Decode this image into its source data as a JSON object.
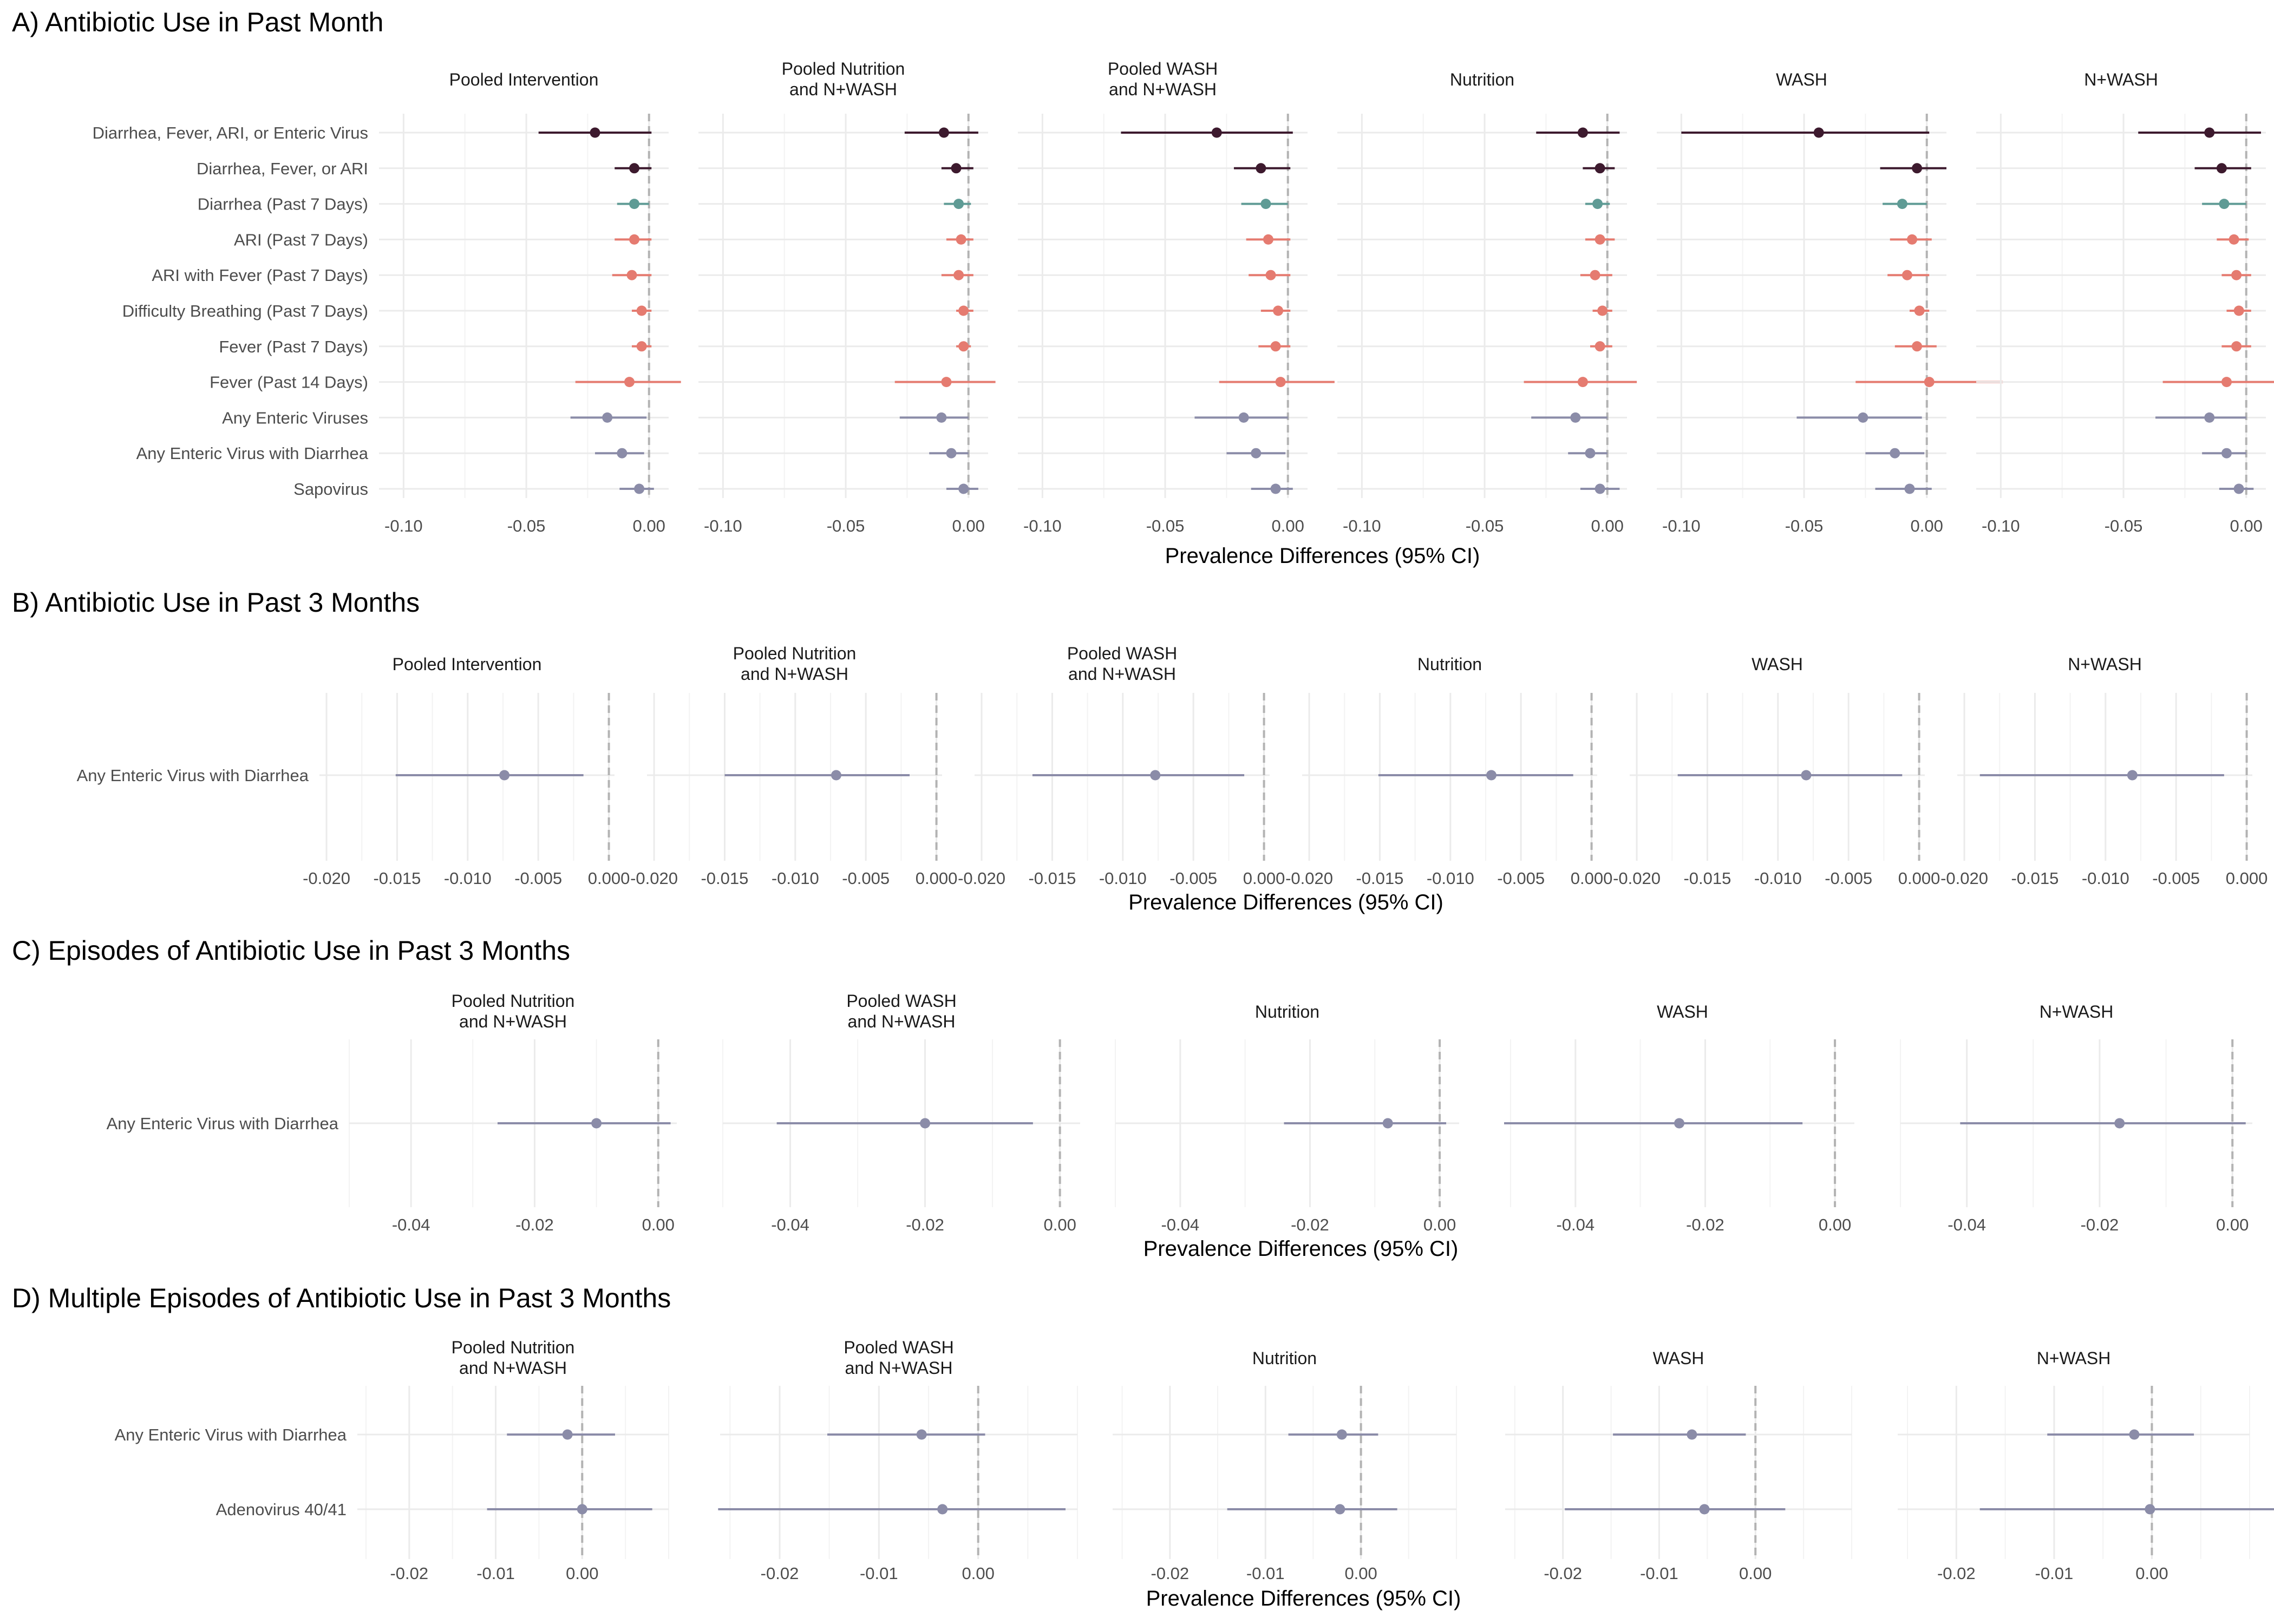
{
  "colors": {
    "severe": "#3d1a2e",
    "diarrhea": "#5f9b95",
    "respiratory_fever": "#e57b70",
    "enteric": "#8b8ca8"
  },
  "chart_data": [
    {
      "type": "scatter",
      "variant": "forest-plot",
      "panel_title": "A) Antibiotic Use in Past Month",
      "xlabel": "Prevalence Differences (95% CI)",
      "xlim": [
        -0.11,
        0.008
      ],
      "xticks": [
        -0.1,
        -0.05,
        0.0
      ],
      "xtick_labels": [
        "-0.10",
        "-0.05",
        "0.00"
      ],
      "reference_line": 0,
      "grid": true,
      "outcomes": [
        {
          "label": "Diarrhea, Fever, ARI, or Enteric Virus",
          "color_key": "severe"
        },
        {
          "label": "Diarrhea, Fever, or ARI",
          "color_key": "severe"
        },
        {
          "label": "Diarrhea (Past 7 Days)",
          "color_key": "diarrhea"
        },
        {
          "label": "ARI (Past 7 Days)",
          "color_key": "respiratory_fever"
        },
        {
          "label": "ARI with Fever (Past 7 Days)",
          "color_key": "respiratory_fever"
        },
        {
          "label": "Difficulty Breathing (Past 7 Days)",
          "color_key": "respiratory_fever"
        },
        {
          "label": "Fever (Past 7 Days)",
          "color_key": "respiratory_fever"
        },
        {
          "label": "Fever (Past 14 Days)",
          "color_key": "respiratory_fever"
        },
        {
          "label": "Any Enteric Viruses",
          "color_key": "enteric"
        },
        {
          "label": "Any Enteric Virus with Diarrhea",
          "color_key": "enteric"
        },
        {
          "label": "Sapovirus",
          "color_key": "enteric"
        }
      ],
      "facets": [
        {
          "title": "Pooled Intervention",
          "est": [
            -0.022,
            -0.006,
            -0.006,
            -0.006,
            -0.007,
            -0.003,
            -0.003,
            -0.008,
            -0.017,
            -0.011,
            -0.004
          ],
          "lo": [
            -0.045,
            -0.014,
            -0.013,
            -0.014,
            -0.015,
            -0.007,
            -0.007,
            -0.03,
            -0.032,
            -0.022,
            -0.012
          ],
          "hi": [
            0.001,
            0.001,
            0.0,
            0.001,
            0.001,
            0.001,
            0.001,
            0.013,
            -0.001,
            -0.002,
            0.002
          ]
        },
        {
          "title": "Pooled Nutrition\nand N+WASH",
          "est": [
            -0.01,
            -0.005,
            -0.004,
            -0.003,
            -0.004,
            -0.002,
            -0.002,
            -0.009,
            -0.011,
            -0.007,
            -0.002
          ],
          "lo": [
            -0.026,
            -0.011,
            -0.01,
            -0.009,
            -0.011,
            -0.005,
            -0.005,
            -0.03,
            -0.028,
            -0.016,
            -0.009
          ],
          "hi": [
            0.004,
            0.002,
            0.001,
            0.002,
            0.002,
            0.002,
            0.001,
            0.011,
            0.0,
            0.0,
            0.004
          ]
        },
        {
          "title": "Pooled WASH\nand N+WASH",
          "est": [
            -0.029,
            -0.011,
            -0.009,
            -0.008,
            -0.007,
            -0.004,
            -0.005,
            -0.003,
            -0.018,
            -0.013,
            -0.005
          ],
          "lo": [
            -0.068,
            -0.022,
            -0.019,
            -0.017,
            -0.016,
            -0.011,
            -0.012,
            -0.028,
            -0.038,
            -0.025,
            -0.015
          ],
          "hi": [
            0.002,
            0.001,
            0.0,
            0.001,
            0.001,
            0.001,
            0.001,
            0.019,
            0.0,
            -0.001,
            0.002
          ]
        },
        {
          "title": "Nutrition",
          "est": [
            -0.01,
            -0.003,
            -0.004,
            -0.003,
            -0.005,
            -0.002,
            -0.003,
            -0.01,
            -0.013,
            -0.007,
            -0.003
          ],
          "lo": [
            -0.029,
            -0.01,
            -0.009,
            -0.009,
            -0.011,
            -0.006,
            -0.007,
            -0.034,
            -0.031,
            -0.016,
            -0.011
          ],
          "hi": [
            0.005,
            0.003,
            0.001,
            0.003,
            0.002,
            0.002,
            0.002,
            0.012,
            0.0,
            0.0,
            0.005
          ]
        },
        {
          "title": "WASH",
          "est": [
            -0.044,
            -0.004,
            -0.01,
            -0.006,
            -0.008,
            -0.003,
            -0.004,
            0.001,
            -0.026,
            -0.013,
            -0.007
          ],
          "lo": [
            -0.1,
            -0.019,
            -0.018,
            -0.015,
            -0.016,
            -0.007,
            -0.013,
            -0.029,
            -0.053,
            -0.025,
            -0.021
          ],
          "hi": [
            0.001,
            0.008,
            0.0,
            0.002,
            0.001,
            0.001,
            0.004,
            0.031,
            -0.002,
            -0.001,
            0.002
          ]
        },
        {
          "title": "N+WASH",
          "est": [
            -0.015,
            -0.01,
            -0.009,
            -0.005,
            -0.004,
            -0.003,
            -0.004,
            -0.008,
            -0.015,
            -0.008,
            -0.003
          ],
          "lo": [
            -0.044,
            -0.021,
            -0.018,
            -0.012,
            -0.01,
            -0.008,
            -0.01,
            -0.034,
            -0.037,
            -0.018,
            -0.011
          ],
          "hi": [
            0.006,
            0.002,
            0.0,
            0.001,
            0.002,
            0.002,
            0.002,
            0.016,
            0.0,
            0.0,
            0.003
          ]
        }
      ]
    },
    {
      "type": "scatter",
      "variant": "forest-plot",
      "panel_title": "B) Antibiotic Use in Past 3 Months",
      "xlabel": "Prevalence Differences (95% CI)",
      "xlim": [
        -0.0205,
        0.0004
      ],
      "xticks": [
        -0.02,
        -0.015,
        -0.01,
        -0.005,
        0.0
      ],
      "xtick_labels": [
        "-0.020",
        "-0.015",
        "-0.010",
        "-0.005",
        "0.000"
      ],
      "reference_line": 0,
      "grid": true,
      "outcomes": [
        {
          "label": "Any Enteric Virus with Diarrhea",
          "color_key": "enteric"
        }
      ],
      "facets": [
        {
          "title": "Pooled Intervention",
          "est": [
            -0.0074
          ],
          "lo": [
            -0.0151
          ],
          "hi": [
            -0.0018
          ]
        },
        {
          "title": "Pooled Nutrition\nand N+WASH",
          "est": [
            -0.0071
          ],
          "lo": [
            -0.015
          ],
          "hi": [
            -0.0019
          ]
        },
        {
          "title": "Pooled WASH\nand N+WASH",
          "est": [
            -0.0077
          ],
          "lo": [
            -0.0164
          ],
          "hi": [
            -0.0014
          ]
        },
        {
          "title": "Nutrition",
          "est": [
            -0.0071
          ],
          "lo": [
            -0.0151
          ],
          "hi": [
            -0.0013
          ]
        },
        {
          "title": "WASH",
          "est": [
            -0.008
          ],
          "lo": [
            -0.0171
          ],
          "hi": [
            -0.0012
          ]
        },
        {
          "title": "N+WASH",
          "est": [
            -0.0081
          ],
          "lo": [
            -0.0189
          ],
          "hi": [
            -0.0016
          ]
        }
      ]
    },
    {
      "type": "scatter",
      "variant": "forest-plot",
      "panel_title": "C) Episodes of Antibiotic Use in Past 3 Months",
      "xlabel": "Prevalence Differences (95% CI)",
      "xlim": [
        -0.05,
        0.003
      ],
      "xticks": [
        -0.04,
        -0.02,
        0.0
      ],
      "xtick_labels": [
        "-0.04",
        "-0.02",
        "0.00"
      ],
      "reference_line": 0,
      "grid": true,
      "outcomes": [
        {
          "label": "Any Enteric Virus with Diarrhea",
          "color_key": "enteric"
        }
      ],
      "facets": [
        {
          "title": "Pooled Nutrition\nand N+WASH",
          "est": [
            -0.01
          ],
          "lo": [
            -0.026
          ],
          "hi": [
            0.002
          ]
        },
        {
          "title": "Pooled WASH\nand N+WASH",
          "est": [
            -0.02
          ],
          "lo": [
            -0.042
          ],
          "hi": [
            -0.004
          ]
        },
        {
          "title": "Nutrition",
          "est": [
            -0.008
          ],
          "lo": [
            -0.024
          ],
          "hi": [
            0.001
          ]
        },
        {
          "title": "WASH",
          "est": [
            -0.024
          ],
          "lo": [
            -0.051
          ],
          "hi": [
            -0.005
          ]
        },
        {
          "title": "N+WASH",
          "est": [
            -0.017
          ],
          "lo": [
            -0.041
          ],
          "hi": [
            0.002
          ]
        }
      ]
    },
    {
      "type": "scatter",
      "variant": "forest-plot",
      "panel_title": "D) Multiple Episodes of Antibiotic Use in Past 3 Months",
      "xlabel": "Prevalence Differences (95% CI)",
      "xlim": [
        -0.026,
        0.01
      ],
      "xticks": [
        -0.02,
        -0.01,
        0.0
      ],
      "xtick_labels": [
        "-0.02",
        "-0.01",
        "0.00"
      ],
      "reference_line": 0,
      "grid": true,
      "outcomes": [
        {
          "label": "Any Enteric Virus with Diarrhea",
          "color_key": "enteric"
        },
        {
          "label": "Adenovirus 40/41",
          "color_key": "enteric"
        }
      ],
      "facets": [
        {
          "title": "Pooled Nutrition\nand N+WASH",
          "est": [
            -0.0017,
            0.0
          ],
          "lo": [
            -0.0087,
            -0.011
          ],
          "hi": [
            0.0038,
            0.0081
          ]
        },
        {
          "title": "Pooled WASH\nand N+WASH",
          "est": [
            -0.0057,
            -0.0036
          ],
          "lo": [
            -0.0152,
            -0.0262
          ],
          "hi": [
            0.0007,
            0.0088
          ]
        },
        {
          "title": "Nutrition",
          "est": [
            -0.002,
            -0.0022
          ],
          "lo": [
            -0.0076,
            -0.014
          ],
          "hi": [
            0.0018,
            0.0038
          ]
        },
        {
          "title": "WASH",
          "est": [
            -0.0066,
            -0.0053
          ],
          "lo": [
            -0.0148,
            -0.0198
          ],
          "hi": [
            -0.001,
            0.0031
          ]
        },
        {
          "title": "N+WASH",
          "est": [
            -0.0018,
            -0.0002
          ],
          "lo": [
            -0.0107,
            -0.0176
          ],
          "hi": [
            0.0043,
            0.0126
          ]
        }
      ]
    }
  ]
}
